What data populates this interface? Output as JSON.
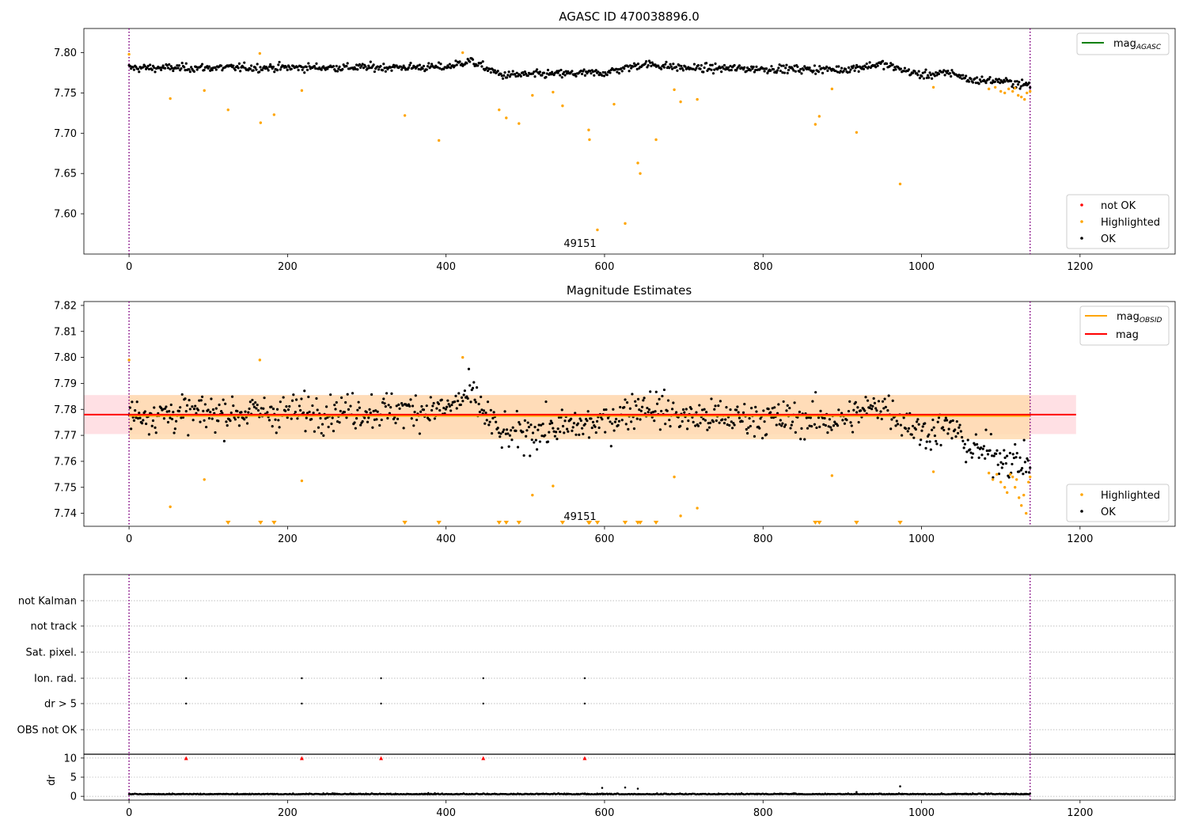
{
  "figure": {
    "panel1_title": "AGASC ID 470038896.0",
    "panel2_title": "Magnitude Estimates",
    "annotation": "49151"
  },
  "colors": {
    "ok": "#000000",
    "highlighted": "#ffa500",
    "not_ok": "#ff0000",
    "mag_agasc": "#008000",
    "mag_obsid": "#ffa500",
    "mag": "#ff0000",
    "obs_boundary": "#800080",
    "band_inner": "#ffdab0",
    "band_outer": "#ffe0e4"
  },
  "legends": {
    "p1_line": [
      "mag_AGASC"
    ],
    "p1_points": [
      "not OK",
      "Highlighted",
      "OK"
    ],
    "p2_lines": [
      "mag_OBSID",
      "mag"
    ],
    "p2_points": [
      "Highlighted",
      "OK"
    ]
  },
  "chart_data": [
    {
      "type": "scatter",
      "title": "AGASC ID 470038896.0",
      "xlim": [
        -57,
        1320
      ],
      "ylim": [
        7.55,
        7.83
      ],
      "xticks": [
        0,
        200,
        400,
        600,
        800,
        1000,
        1200
      ],
      "yticks": [
        7.6,
        7.65,
        7.7,
        7.75,
        7.8
      ],
      "obs_boundaries": [
        0,
        1137
      ],
      "annotation": {
        "text": "49151",
        "x": 570,
        "y": 7.56
      },
      "ok_trend": [
        [
          0,
          7.781
        ],
        [
          400,
          7.782
        ],
        [
          430,
          7.79
        ],
        [
          470,
          7.772
        ],
        [
          600,
          7.775
        ],
        [
          650,
          7.786
        ],
        [
          700,
          7.781
        ],
        [
          900,
          7.779
        ],
        [
          950,
          7.786
        ],
        [
          1000,
          7.772
        ],
        [
          1040,
          7.775
        ],
        [
          1060,
          7.766
        ],
        [
          1100,
          7.765
        ],
        [
          1130,
          7.76
        ]
      ],
      "highlighted": [
        [
          0,
          7.798
        ],
        [
          52,
          7.743
        ],
        [
          95,
          7.753
        ],
        [
          125,
          7.729
        ],
        [
          165,
          7.799
        ],
        [
          166,
          7.713
        ],
        [
          183,
          7.723
        ],
        [
          218,
          7.753
        ],
        [
          348,
          7.722
        ],
        [
          391,
          7.691
        ],
        [
          421,
          7.8
        ],
        [
          467,
          7.729
        ],
        [
          476,
          7.719
        ],
        [
          492,
          7.712
        ],
        [
          509,
          7.747
        ],
        [
          535,
          7.751
        ],
        [
          547,
          7.734
        ],
        [
          580,
          7.704
        ],
        [
          581,
          7.692
        ],
        [
          591,
          7.58
        ],
        [
          612,
          7.736
        ],
        [
          626,
          7.588
        ],
        [
          642,
          7.663
        ],
        [
          645,
          7.65
        ],
        [
          665,
          7.692
        ],
        [
          688,
          7.754
        ],
        [
          696,
          7.739
        ],
        [
          717,
          7.742
        ],
        [
          866,
          7.711
        ],
        [
          871,
          7.721
        ],
        [
          887,
          7.755
        ],
        [
          918,
          7.701
        ],
        [
          973,
          7.637
        ],
        [
          1015,
          7.757
        ],
        [
          1085,
          7.755
        ],
        [
          1093,
          7.757
        ],
        [
          1100,
          7.752
        ],
        [
          1105,
          7.75
        ],
        [
          1110,
          7.755
        ],
        [
          1115,
          7.752
        ],
        [
          1118,
          7.756
        ],
        [
          1122,
          7.747
        ],
        [
          1126,
          7.745
        ],
        [
          1130,
          7.742
        ],
        [
          1133,
          7.75
        ],
        [
          1137,
          7.752
        ]
      ],
      "legend": [
        "mag_AGASC",
        "not OK",
        "Highlighted",
        "OK"
      ]
    },
    {
      "type": "scatter",
      "title": "Magnitude Estimates",
      "xlim": [
        -57,
        1320
      ],
      "ylim": [
        7.735,
        7.8215
      ],
      "xticks": [
        0,
        200,
        400,
        600,
        800,
        1000,
        1200
      ],
      "yticks": [
        7.74,
        7.75,
        7.76,
        7.77,
        7.78,
        7.79,
        7.8,
        7.81,
        7.82
      ],
      "obs_boundaries": [
        0,
        1137
      ],
      "mag": 7.778,
      "mag_obsid": 7.7775,
      "band_mag": [
        7.7705,
        7.7855
      ],
      "band_obsid": [
        7.7685,
        7.7855
      ],
      "annotation": {
        "text": "49151",
        "x": 570,
        "y": 7.7375
      },
      "ok_trend": [
        [
          0,
          7.778
        ],
        [
          400,
          7.78
        ],
        [
          430,
          7.786
        ],
        [
          470,
          7.77
        ],
        [
          600,
          7.775
        ],
        [
          650,
          7.782
        ],
        [
          700,
          7.777
        ],
        [
          900,
          7.776
        ],
        [
          950,
          7.782
        ],
        [
          1000,
          7.771
        ],
        [
          1040,
          7.773
        ],
        [
          1060,
          7.765
        ],
        [
          1100,
          7.762
        ],
        [
          1130,
          7.759
        ]
      ],
      "highlighted": [
        [
          0,
          7.799
        ],
        [
          52,
          7.7425
        ],
        [
          95,
          7.753
        ],
        [
          165,
          7.799
        ],
        [
          218,
          7.7525
        ],
        [
          421,
          7.8
        ],
        [
          509,
          7.747
        ],
        [
          535,
          7.7505
        ],
        [
          688,
          7.754
        ],
        [
          696,
          7.739
        ],
        [
          717,
          7.742
        ],
        [
          887,
          7.7545
        ],
        [
          1015,
          7.756
        ],
        [
          1085,
          7.7555
        ],
        [
          1090,
          7.753
        ],
        [
          1095,
          7.755
        ],
        [
          1100,
          7.752
        ],
        [
          1105,
          7.75
        ],
        [
          1108,
          7.748
        ],
        [
          1112,
          7.755
        ],
        [
          1115,
          7.754
        ],
        [
          1118,
          7.75
        ],
        [
          1120,
          7.753
        ],
        [
          1123,
          7.746
        ],
        [
          1126,
          7.743
        ],
        [
          1129,
          7.747
        ],
        [
          1132,
          7.74
        ],
        [
          1135,
          7.752
        ],
        [
          1137,
          7.754
        ]
      ],
      "below_range_x": [
        125,
        166,
        183,
        348,
        391,
        467,
        476,
        492,
        547,
        580,
        581,
        591,
        626,
        642,
        645,
        665,
        866,
        871,
        918,
        973
      ],
      "legend": [
        "mag_OBSID",
        "mag",
        "Highlighted",
        "OK"
      ]
    },
    {
      "type": "scatter",
      "title": "",
      "xlim": [
        -57,
        1320
      ],
      "categories": [
        "not Kalman",
        "not track",
        "Sat. pixel.",
        "Ion. rad.",
        "dr > 5",
        "OBS not OK"
      ],
      "flags": {
        "Ion. rad.": [
          72,
          218,
          318,
          447,
          575
        ],
        "dr > 5": [
          72,
          218,
          318,
          447,
          575
        ]
      },
      "obs_boundaries": [
        0,
        1137
      ]
    },
    {
      "type": "scatter",
      "title": "",
      "xlim": [
        -57,
        1320
      ],
      "ylim": [
        -1,
        11
      ],
      "ylabel": "dr",
      "xticks": [
        0,
        200,
        400,
        600,
        800,
        1000,
        1200
      ],
      "yticks": [
        0,
        5,
        10
      ],
      "dr_baseline": 0.5,
      "clipped_at_10": [
        72,
        218,
        318,
        447,
        575
      ],
      "outliers": [
        [
          597,
          2.2
        ],
        [
          626,
          2.3
        ],
        [
          642,
          2.0
        ],
        [
          973,
          2.6
        ],
        [
          918,
          1.1
        ]
      ]
    }
  ]
}
